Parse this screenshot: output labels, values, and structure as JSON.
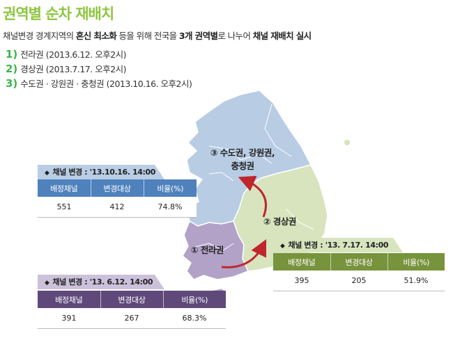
{
  "header": {
    "title": "권역별 순차 재배치",
    "subtitle_parts": [
      "채널변경 경계지역의 ",
      "혼신 최소화",
      " 등을 위해 전국을 ",
      "3개 권역별",
      "로 나누어 ",
      "채널 재배치 실시"
    ]
  },
  "phases": [
    {
      "num": "1)",
      "text": "전라권 (2013.6.12. 오후2시)"
    },
    {
      "num": "2)",
      "text": "경상권 (2013.7.17. 오후2시)"
    },
    {
      "num": "3)",
      "text": "수도권 · 강원권 · 충청권 (2013.10.16. 오후2시)"
    }
  ],
  "map": {
    "regions": {
      "capital": {
        "label_line1": "③ 수도권, 강원권,",
        "label_line2": "충청권",
        "color": "#b8cce4"
      },
      "gyeongsang": {
        "label": "② 경상권",
        "color": "#d7e4bd"
      },
      "jeolla": {
        "label": "① 전라권",
        "color": "#b3a2c7"
      }
    },
    "arrow_color": "#c0272d"
  },
  "changes": {
    "columns": [
      "배정채널",
      "변경대상",
      "비율(%)"
    ],
    "capital": {
      "tag_label": "채널 변경 : '13.10.16.  14:00",
      "header_color": "#4f81bd",
      "tag_color": "#b9cde5",
      "row": [
        "551",
        "412",
        "74.8%"
      ]
    },
    "gyeongsang": {
      "tag_label": "채널 변경 : '13.  7.17.  14:00",
      "header_color": "#77933c",
      "tag_color": "#d7e4bd",
      "row": [
        "395",
        "205",
        "51.9%"
      ]
    },
    "jeolla": {
      "tag_label": "채널 변경 : '13. 6.12. 14:00",
      "header_color": "#5f497a",
      "tag_color": "#ccc1da",
      "row": [
        "391",
        "267",
        "68.3%"
      ]
    }
  }
}
